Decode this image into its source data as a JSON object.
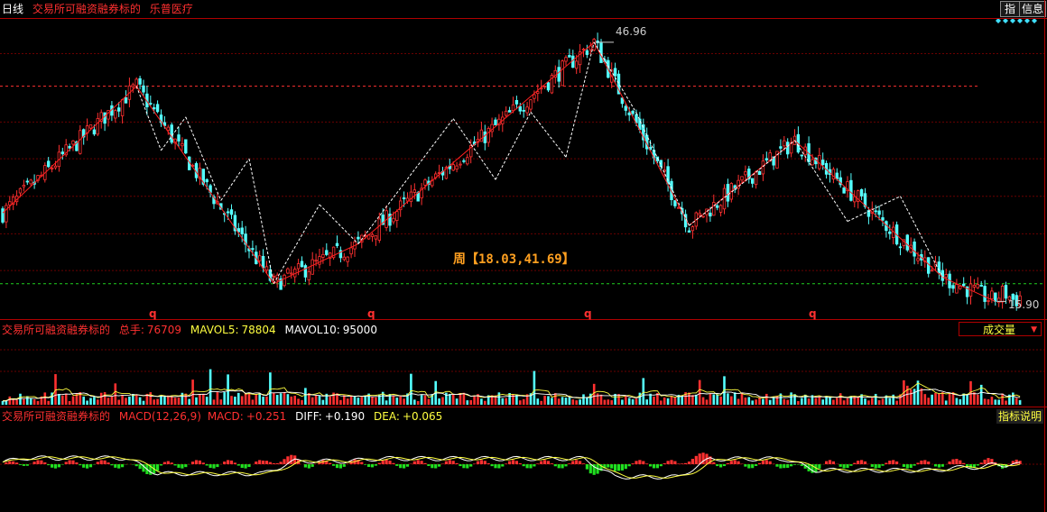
{
  "header": {
    "period": "日线",
    "indicator": "交易所可融资融券标的",
    "stock": "乐普医疗",
    "btn_index": "指",
    "btn_info": "信息"
  },
  "main_chart": {
    "max_label": "46.96",
    "min_label": "15.90",
    "cycle_label": "周【18.03,41.69】",
    "q_markers": [
      "q",
      "q",
      "q",
      "q"
    ],
    "ylim": [
      14,
      49
    ],
    "ref_levels": [
      41.69,
      18.03
    ],
    "gridlines": [
      45.6,
      37.4,
      33.0,
      28.5,
      24.0,
      19.6
    ],
    "zigzag_peaks": [
      {
        "i": 0,
        "v": 26.5
      },
      {
        "i": 38,
        "v": 41.69
      },
      {
        "i": 77,
        "v": 18.03
      },
      {
        "i": 101,
        "v": 22.8
      },
      {
        "i": 168,
        "v": 46.96
      },
      {
        "i": 195,
        "v": 25.0
      },
      {
        "i": 225,
        "v": 35.2
      },
      {
        "i": 267,
        "v": 18.8
      },
      {
        "i": 282,
        "v": 15.9
      }
    ],
    "colors": {
      "up": "#ff3030",
      "down": "#54ffff",
      "zig_red": "#ff2020",
      "zig_white": "#ffffff",
      "ref_dash": "#ff3030",
      "low_dash": "#20d020"
    }
  },
  "volume_panel": {
    "indicator": "交易所可融资融券标的",
    "total_label": "总手:",
    "total_value": "76709",
    "mavol5_label": "MAVOL5:",
    "mavol5_value": "78804",
    "mavol10_label": "MAVOL10:",
    "mavol10_value": "95000",
    "selector": "成交量"
  },
  "macd_panel": {
    "indicator": "交易所可融资融券标的",
    "name": "MACD(12,26,9)",
    "macd_label": "MACD:",
    "macd_value": "+0.251",
    "diff_label": "DIFF:",
    "diff_value": "+0.190",
    "dea_label": "DEA:",
    "dea_value": "+0.065",
    "help": "指标说明"
  }
}
